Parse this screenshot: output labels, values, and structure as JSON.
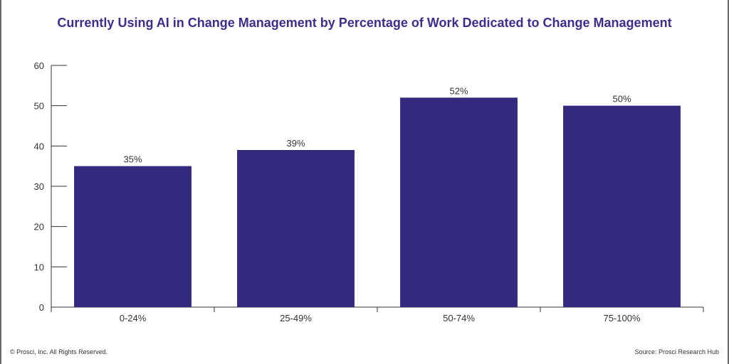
{
  "chart_data": {
    "type": "bar",
    "title": "Currently Using AI in Change Management by Percentage of Work Dedicated to Change Management",
    "xlabel": "",
    "ylabel": "",
    "categories": [
      "0-24%",
      "25-49%",
      "50-74%",
      "75-100%"
    ],
    "values": [
      35,
      39,
      52,
      50
    ],
    "data_labels": [
      "35%",
      "39%",
      "52%",
      "50%"
    ],
    "ylim": [
      0,
      60
    ],
    "yticks": [
      0,
      10,
      20,
      30,
      40,
      50,
      60
    ],
    "grid": false,
    "legend": "none",
    "bar_color": "#33297f",
    "title_color": "#3a2f8a"
  },
  "footer": {
    "copyright": "© Prosci, Inc. All Rights Reserved.",
    "source": "Source: Prosci Research Hub"
  }
}
